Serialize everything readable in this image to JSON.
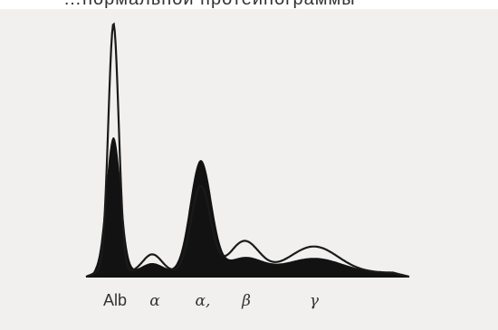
{
  "header_fragment": "…нормальной протеинограммы",
  "chart_data": {
    "type": "area",
    "title": "",
    "xlabel": "",
    "ylabel": "",
    "categories": [
      "Alb",
      "α",
      "α,",
      "β",
      "γ"
    ],
    "series": [
      {
        "style": "filled",
        "peaks": [
          0.52,
          0.04,
          0.43,
          0.06,
          0.06
        ]
      },
      {
        "style": "outline",
        "peaks": [
          0.95,
          0.07,
          0.33,
          0.12,
          0.1
        ]
      }
    ],
    "colors": {
      "fill": "#121212",
      "outline": "#1a1a1a",
      "background": "#f1f0ee"
    }
  }
}
